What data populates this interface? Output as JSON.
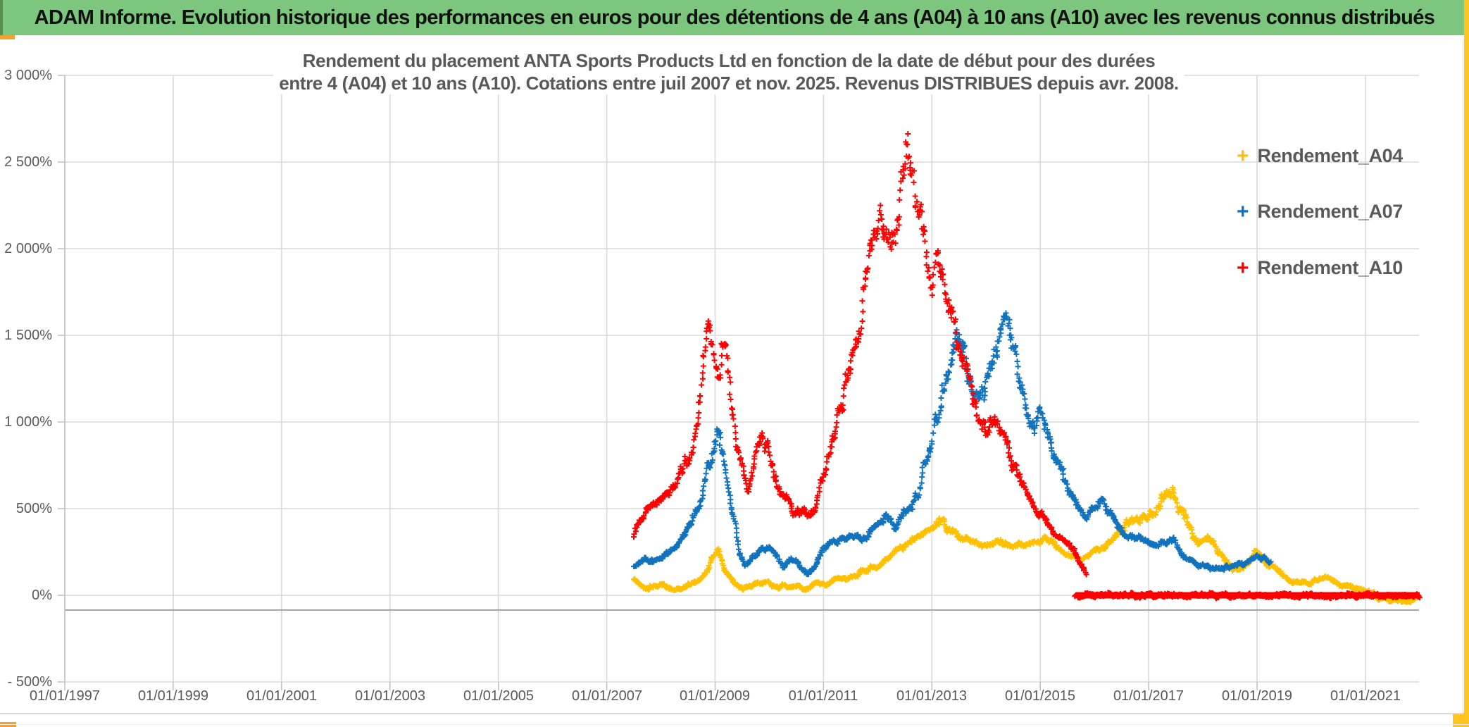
{
  "header": {
    "title": "ADAM Informe. Evolution historique des performances en euros pour des détentions de 4 ans (A04) à 10 ans (A10) avec les revenus connus distribués"
  },
  "colors": {
    "header_bg": "#7cc67d",
    "header_edge": "#5c8f54",
    "gold_accent": "#efa32e",
    "gold_stripe": "#ffc41e",
    "gridline": "#d9d9d9",
    "axis_dark_line": "#a6a6a6",
    "plot_border": "#bfbfbf",
    "text_gray": "#595959",
    "series_a04": "#ffc000",
    "series_a07": "#1173bd",
    "series_a10": "#ff0000"
  },
  "chart_data": {
    "type": "scatter",
    "marker": "+",
    "title_line1": "Rendement du placement ANTA Sports Products Ltd en fonction de la date de début pour des durées",
    "title_line2": "entre 4 (A04) et 10 ans (A10). Cotations entre juil 2007 et nov. 2025. Revenus DISTRIBUES depuis avr. 2008.",
    "x_axis": {
      "labels": [
        "01/01/1997",
        "01/01/1999",
        "01/01/2001",
        "01/01/2003",
        "01/01/2005",
        "01/01/2007",
        "01/01/2009",
        "01/01/2011",
        "01/01/2013",
        "01/01/2015",
        "01/01/2017",
        "01/01/2019",
        "01/01/2021"
      ],
      "start_year": 1997,
      "tick_interval_years": 2,
      "grid": true
    },
    "y_axis": {
      "labels": [
        "3 000%",
        "2 500%",
        "2 000%",
        "1 500%",
        "1 000%",
        "500%",
        "0%",
        "- 500%"
      ],
      "values": [
        3000,
        2500,
        2000,
        1500,
        1000,
        500,
        0,
        -500
      ],
      "unit": "%",
      "ylim": [
        -500,
        3000
      ],
      "grid": true
    },
    "legend": {
      "position": "right",
      "items": [
        {
          "label": "Rendement_A04",
          "color": "#ffc000"
        },
        {
          "label": "Rendement_A07",
          "color": "#1173bd"
        },
        {
          "label": "Rendement_A10",
          "color": "#ff0000"
        }
      ]
    },
    "series": [
      {
        "name": "Rendement_A04",
        "color": "#ffc000",
        "spread": {
          "base": 20,
          "frac": 0.1,
          "cap": 55
        },
        "points": [
          [
            2007.5,
            90
          ],
          [
            2007.65,
            60
          ],
          [
            2007.8,
            45
          ],
          [
            2008.0,
            60
          ],
          [
            2008.2,
            35
          ],
          [
            2008.4,
            45
          ],
          [
            2008.6,
            60
          ],
          [
            2008.8,
            120
          ],
          [
            2008.95,
            230
          ],
          [
            2009.05,
            270
          ],
          [
            2009.15,
            150
          ],
          [
            2009.3,
            90
          ],
          [
            2009.45,
            55
          ],
          [
            2009.6,
            45
          ],
          [
            2009.75,
            60
          ],
          [
            2009.9,
            75
          ],
          [
            2010.05,
            65
          ],
          [
            2010.2,
            50
          ],
          [
            2010.35,
            45
          ],
          [
            2010.5,
            40
          ],
          [
            2010.65,
            35
          ],
          [
            2010.8,
            45
          ],
          [
            2011.0,
            60
          ],
          [
            2011.2,
            85
          ],
          [
            2011.4,
            100
          ],
          [
            2011.6,
            130
          ],
          [
            2011.8,
            150
          ],
          [
            2012.0,
            170
          ],
          [
            2012.2,
            220
          ],
          [
            2012.4,
            270
          ],
          [
            2012.6,
            290
          ],
          [
            2012.8,
            350
          ],
          [
            2013.0,
            380
          ],
          [
            2013.15,
            410
          ],
          [
            2013.3,
            390
          ],
          [
            2013.45,
            350
          ],
          [
            2013.6,
            330
          ],
          [
            2013.75,
            320
          ],
          [
            2013.9,
            300
          ],
          [
            2014.05,
            280
          ],
          [
            2014.2,
            300
          ],
          [
            2014.35,
            320
          ],
          [
            2014.5,
            300
          ],
          [
            2014.65,
            280
          ],
          [
            2014.8,
            290
          ],
          [
            2014.95,
            310
          ],
          [
            2015.1,
            330
          ],
          [
            2015.25,
            300
          ],
          [
            2015.4,
            260
          ],
          [
            2015.55,
            230
          ],
          [
            2015.7,
            220
          ],
          [
            2015.85,
            230
          ],
          [
            2016.0,
            250
          ],
          [
            2016.15,
            280
          ],
          [
            2016.3,
            300
          ],
          [
            2016.45,
            350
          ],
          [
            2016.6,
            400
          ],
          [
            2016.75,
            430
          ],
          [
            2016.9,
            470
          ],
          [
            2017.05,
            490
          ],
          [
            2017.2,
            520
          ],
          [
            2017.35,
            600
          ],
          [
            2017.45,
            620
          ],
          [
            2017.55,
            520
          ],
          [
            2017.7,
            450
          ],
          [
            2017.85,
            330
          ],
          [
            2017.95,
            290
          ],
          [
            2018.1,
            310
          ],
          [
            2018.25,
            280
          ],
          [
            2018.4,
            220
          ],
          [
            2018.55,
            160
          ],
          [
            2018.7,
            140
          ],
          [
            2018.85,
            180
          ],
          [
            2018.95,
            250
          ],
          [
            2019.05,
            240
          ],
          [
            2019.2,
            180
          ],
          [
            2019.35,
            140
          ],
          [
            2019.5,
            120
          ],
          [
            2019.65,
            90
          ],
          [
            2019.8,
            70
          ],
          [
            2019.95,
            80
          ],
          [
            2020.1,
            95
          ],
          [
            2020.25,
            110
          ],
          [
            2020.4,
            80
          ],
          [
            2020.55,
            50
          ],
          [
            2020.7,
            55
          ],
          [
            2020.85,
            40
          ],
          [
            2021.0,
            25
          ],
          [
            2021.15,
            10
          ],
          [
            2021.3,
            -10
          ],
          [
            2021.45,
            -25
          ],
          [
            2021.6,
            -40
          ],
          [
            2021.75,
            -35
          ],
          [
            2021.9,
            -25
          ],
          [
            2022.0,
            -15
          ]
        ]
      },
      {
        "name": "Rendement_A07",
        "color": "#1173bd",
        "spread": {
          "base": 22,
          "frac": 0.085,
          "cap": 120
        },
        "points": [
          [
            2007.5,
            160
          ],
          [
            2007.7,
            220
          ],
          [
            2007.9,
            200
          ],
          [
            2008.1,
            240
          ],
          [
            2008.3,
            280
          ],
          [
            2008.5,
            380
          ],
          [
            2008.7,
            520
          ],
          [
            2008.85,
            700
          ],
          [
            2008.95,
            850
          ],
          [
            2009.05,
            950
          ],
          [
            2009.15,
            800
          ],
          [
            2009.3,
            500
          ],
          [
            2009.45,
            250
          ],
          [
            2009.55,
            170
          ],
          [
            2009.7,
            220
          ],
          [
            2009.85,
            260
          ],
          [
            2010.0,
            280
          ],
          [
            2010.15,
            220
          ],
          [
            2010.25,
            160
          ],
          [
            2010.4,
            200
          ],
          [
            2010.55,
            190
          ],
          [
            2010.7,
            130
          ],
          [
            2010.85,
            170
          ],
          [
            2011.0,
            260
          ],
          [
            2011.2,
            310
          ],
          [
            2011.4,
            330
          ],
          [
            2011.6,
            350
          ],
          [
            2011.8,
            330
          ],
          [
            2012.0,
            390
          ],
          [
            2012.15,
            460
          ],
          [
            2012.3,
            380
          ],
          [
            2012.45,
            480
          ],
          [
            2012.6,
            520
          ],
          [
            2012.75,
            600
          ],
          [
            2012.9,
            780
          ],
          [
            2013.0,
            880
          ],
          [
            2013.1,
            1050
          ],
          [
            2013.2,
            1150
          ],
          [
            2013.35,
            1300
          ],
          [
            2013.5,
            1480
          ],
          [
            2013.6,
            1350
          ],
          [
            2013.75,
            1200
          ],
          [
            2013.9,
            1150
          ],
          [
            2014.05,
            1250
          ],
          [
            2014.2,
            1400
          ],
          [
            2014.35,
            1620
          ],
          [
            2014.45,
            1500
          ],
          [
            2014.6,
            1300
          ],
          [
            2014.75,
            1100
          ],
          [
            2014.9,
            1000
          ],
          [
            2015.05,
            1050
          ],
          [
            2015.2,
            900
          ],
          [
            2015.35,
            750
          ],
          [
            2015.5,
            620
          ],
          [
            2015.65,
            520
          ],
          [
            2015.8,
            450
          ],
          [
            2015.95,
            480
          ],
          [
            2016.1,
            560
          ],
          [
            2016.25,
            500
          ],
          [
            2016.4,
            400
          ],
          [
            2016.55,
            350
          ],
          [
            2016.7,
            330
          ],
          [
            2016.85,
            330
          ],
          [
            2017.0,
            300
          ],
          [
            2017.15,
            290
          ],
          [
            2017.3,
            320
          ],
          [
            2017.45,
            330
          ],
          [
            2017.6,
            240
          ],
          [
            2017.75,
            200
          ],
          [
            2017.9,
            180
          ],
          [
            2018.05,
            170
          ],
          [
            2018.2,
            150
          ],
          [
            2018.35,
            160
          ],
          [
            2018.5,
            170
          ],
          [
            2018.65,
            180
          ],
          [
            2018.8,
            190
          ],
          [
            2018.95,
            220
          ],
          [
            2019.1,
            210
          ],
          [
            2019.25,
            190
          ]
        ]
      },
      {
        "name": "Rendement_A10",
        "color": "#ff0000",
        "spread": {
          "base": 25,
          "frac": 0.085,
          "cap": 190
        },
        "points": [
          [
            2007.5,
            330
          ],
          [
            2007.62,
            430
          ],
          [
            2007.75,
            480
          ],
          [
            2007.9,
            520
          ],
          [
            2008.1,
            560
          ],
          [
            2008.3,
            650
          ],
          [
            2008.5,
            780
          ],
          [
            2008.65,
            950
          ],
          [
            2008.8,
            1350
          ],
          [
            2008.88,
            1560
          ],
          [
            2008.95,
            1350
          ],
          [
            2009.05,
            1200
          ],
          [
            2009.16,
            1500
          ],
          [
            2009.3,
            1050
          ],
          [
            2009.45,
            780
          ],
          [
            2009.6,
            620
          ],
          [
            2009.75,
            800
          ],
          [
            2009.85,
            950
          ],
          [
            2010.0,
            840
          ],
          [
            2010.15,
            640
          ],
          [
            2010.3,
            560
          ],
          [
            2010.5,
            470
          ],
          [
            2010.7,
            480
          ],
          [
            2010.85,
            520
          ],
          [
            2011.0,
            700
          ],
          [
            2011.15,
            900
          ],
          [
            2011.3,
            1100
          ],
          [
            2011.5,
            1300
          ],
          [
            2011.65,
            1500
          ],
          [
            2011.8,
            1800
          ],
          [
            2011.95,
            2100
          ],
          [
            2012.05,
            2250
          ],
          [
            2012.15,
            2150
          ],
          [
            2012.25,
            1950
          ],
          [
            2012.4,
            2200
          ],
          [
            2012.55,
            2550
          ],
          [
            2012.65,
            2450
          ],
          [
            2012.75,
            2100
          ],
          [
            2012.9,
            1950
          ],
          [
            2013.0,
            1850
          ],
          [
            2013.1,
            2000
          ],
          [
            2013.25,
            1850
          ],
          [
            2013.4,
            1600
          ],
          [
            2013.55,
            1350
          ],
          [
            2013.7,
            1250
          ],
          [
            2013.85,
            1000
          ],
          [
            2014.0,
            950
          ],
          [
            2014.15,
            1050
          ],
          [
            2014.3,
            900
          ],
          [
            2014.5,
            750
          ],
          [
            2014.7,
            620
          ],
          [
            2014.9,
            520
          ],
          [
            2015.1,
            430
          ],
          [
            2015.3,
            380
          ],
          [
            2015.5,
            300
          ],
          [
            2015.7,
            220
          ],
          [
            2015.85,
            140
          ]
        ],
        "flat_segment": {
          "x_start": 2015.65,
          "x_end": 2022.0,
          "y": 0
        }
      }
    ]
  }
}
